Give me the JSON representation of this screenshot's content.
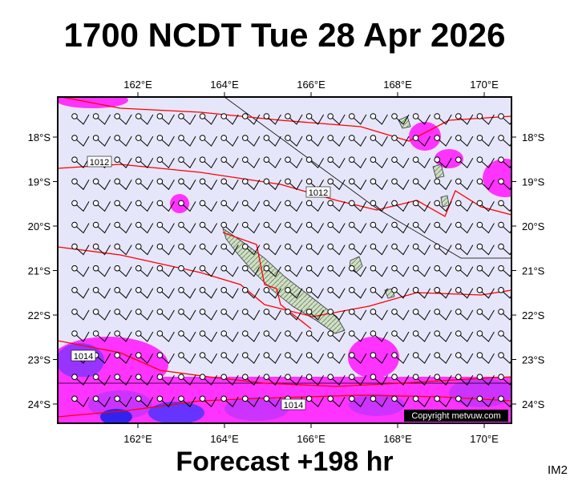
{
  "header": {
    "title": "1700 NCDT Tue 28 Apr 2026"
  },
  "map": {
    "lon_labels": [
      "162°E",
      "164°E",
      "166°E",
      "168°E",
      "170°E"
    ],
    "lat_labels": [
      "18°S",
      "19°S",
      "20°S",
      "21°S",
      "22°S",
      "23°S",
      "24°S"
    ],
    "isobar_labels": [
      "1012",
      "1012",
      "1014",
      "1014"
    ],
    "copyright": "Copyright metvuw.com"
  },
  "footer": {
    "forecast": "Forecast +198 hr",
    "code": "IM2"
  }
}
